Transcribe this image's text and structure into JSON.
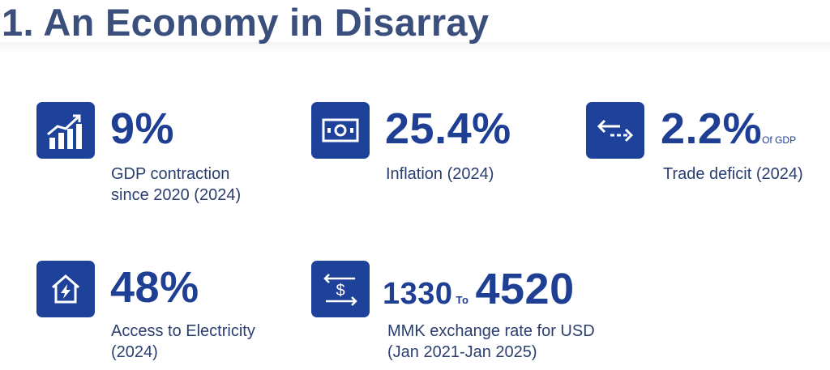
{
  "title": "1.   An Economy in Disarray",
  "stats": [
    {
      "value": "9%",
      "note": "",
      "desc_lines": [
        "GDP contraction",
        "since 2020 (2024)"
      ],
      "icon": "chart-growth-icon"
    },
    {
      "value": "25.4%",
      "note": "",
      "desc_lines": [
        "Inflation (2024)"
      ],
      "icon": "banknote-icon"
    },
    {
      "value": "2.2%",
      "note": "Of GDP",
      "desc_lines": [
        "Trade deficit (2024)"
      ],
      "icon": "arrows-exchange-icon"
    },
    {
      "value": "48%",
      "note": "",
      "desc_lines": [
        "Access to Electricity",
        "(2024)"
      ],
      "icon": "house-lightning-icon"
    }
  ],
  "exchange": {
    "from": "1330",
    "to_word": "To",
    "to": "4520",
    "desc_lines": [
      "MMK exchange rate for USD",
      "(Jan 2021-Jan 2025)"
    ],
    "icon": "dollar-transfer-icon"
  },
  "colors": {
    "accent": "#1e4199",
    "title": "#3b4f7d",
    "text": "#2a3e70"
  }
}
